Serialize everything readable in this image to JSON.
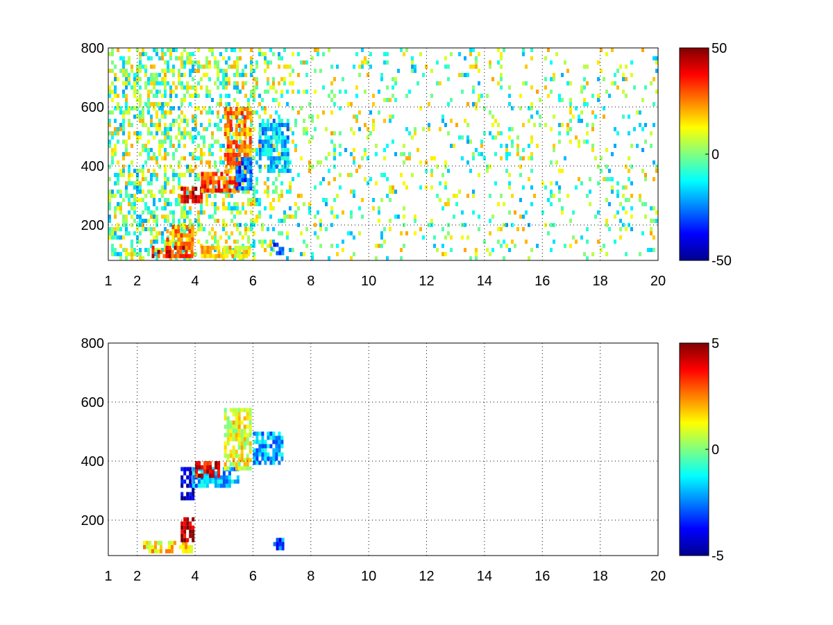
{
  "colors": {
    "axis": "#000000",
    "grid": "#000000",
    "background": "#ffffff",
    "colormap": [
      "#00008f",
      "#0000ff",
      "#0080ff",
      "#00ffff",
      "#80ff80",
      "#ffff00",
      "#ff8000",
      "#ff0000",
      "#800000"
    ]
  },
  "chart_data": [
    {
      "type": "heatmap",
      "title": "",
      "xlabel": "",
      "ylabel": "",
      "xlim": [
        1,
        20
      ],
      "ylim": [
        80,
        800
      ],
      "x_ticks": [
        1,
        2,
        4,
        6,
        8,
        10,
        12,
        14,
        16,
        18,
        20
      ],
      "x_tick_labels": [
        "1",
        "2",
        "4",
        "6",
        "8",
        "10",
        "12",
        "14",
        "16",
        "18",
        "20"
      ],
      "y_ticks": [
        200,
        400,
        600,
        800
      ],
      "y_tick_labels": [
        "200",
        "400",
        "600",
        "800"
      ],
      "grid": true,
      "colorbar": {
        "range": [
          -50,
          50
        ],
        "ticks": [
          -50,
          0,
          50
        ],
        "tick_labels": [
          "-50",
          "0",
          "50"
        ]
      },
      "features": [
        {
          "x": [
            2.5,
            3.9
          ],
          "y": [
            90,
            130
          ],
          "value": 35
        },
        {
          "x": [
            3.0,
            3.9
          ],
          "y": [
            130,
            200
          ],
          "value": 22
        },
        {
          "x": [
            3.5,
            4.2
          ],
          "y": [
            280,
            330
          ],
          "value": 38
        },
        {
          "x": [
            4.2,
            5.5
          ],
          "y": [
            320,
            380
          ],
          "value": 30
        },
        {
          "x": [
            5.0,
            5.9
          ],
          "y": [
            380,
            600
          ],
          "value": 25
        },
        {
          "x": [
            5.4,
            5.9
          ],
          "y": [
            330,
            430
          ],
          "value": -28
        },
        {
          "x": [
            6.2,
            7.2
          ],
          "y": [
            380,
            560
          ],
          "value": -18
        },
        {
          "x": [
            4.2,
            5.9
          ],
          "y": [
            100,
            130
          ],
          "value": 15
        },
        {
          "x": [
            6.6,
            7.0
          ],
          "y": [
            110,
            140
          ],
          "value": -30
        }
      ]
    },
    {
      "type": "heatmap",
      "title": "",
      "xlabel": "",
      "ylabel": "",
      "xlim": [
        1,
        20
      ],
      "ylim": [
        80,
        800
      ],
      "x_ticks": [
        1,
        2,
        4,
        6,
        8,
        10,
        12,
        14,
        16,
        18,
        20
      ],
      "x_tick_labels": [
        "1",
        "2",
        "4",
        "6",
        "8",
        "10",
        "12",
        "14",
        "16",
        "18",
        "20"
      ],
      "y_ticks": [
        200,
        400,
        600,
        800
      ],
      "y_tick_labels": [
        "200",
        "400",
        "600",
        "800"
      ],
      "grid": true,
      "colorbar": {
        "range": [
          -5,
          5
        ],
        "ticks": [
          -5,
          0,
          5
        ],
        "tick_labels": [
          "-5",
          "0",
          "5"
        ]
      },
      "features": [
        {
          "x": [
            2.2,
            3.9
          ],
          "y": [
            90,
            130
          ],
          "value": 1.5
        },
        {
          "x": [
            3.5,
            3.9
          ],
          "y": [
            130,
            210
          ],
          "value": 4.5
        },
        {
          "x": [
            3.5,
            3.9
          ],
          "y": [
            280,
            380
          ],
          "value": -4.5
        },
        {
          "x": [
            3.9,
            5.5
          ],
          "y": [
            310,
            380
          ],
          "value": -2
        },
        {
          "x": [
            4.0,
            4.8
          ],
          "y": [
            350,
            400
          ],
          "value": 4
        },
        {
          "x": [
            5.0,
            5.9
          ],
          "y": [
            380,
            580
          ],
          "value": 1
        },
        {
          "x": [
            6.0,
            7.0
          ],
          "y": [
            400,
            500
          ],
          "value": -2
        },
        {
          "x": [
            6.7,
            7.0
          ],
          "y": [
            110,
            140
          ],
          "value": -3
        }
      ]
    }
  ]
}
